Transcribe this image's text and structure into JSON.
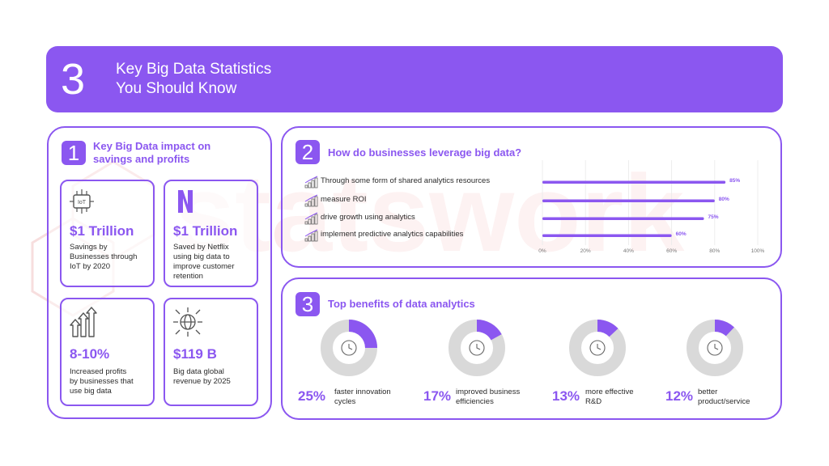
{
  "header": {
    "number": "3",
    "title_line1": "Key Big Data Statistics",
    "title_line2": "You Should Know"
  },
  "watermark": {
    "text": "statswork"
  },
  "section1": {
    "number": "1",
    "title_line1": "Key Big Data impact on",
    "title_line2": "savings and profits",
    "cards": [
      {
        "icon": "iot-chip-icon",
        "value": "$1 Trillion",
        "desc": [
          "Savings by",
          "Businesses through",
          "IoT by 2020"
        ]
      },
      {
        "icon": "netflix-logo-icon",
        "value": "$1 Trillion",
        "desc": [
          "Saved by Netflix",
          "using big data to",
          "improve customer",
          "retention"
        ]
      },
      {
        "icon": "growth-arrows-icon",
        "value": "8-10%",
        "desc": [
          "Increased profits",
          "by businesses that",
          "use big data"
        ]
      },
      {
        "icon": "global-network-icon",
        "value": "$119 B",
        "desc": [
          "Big data global",
          "revenue by 2025"
        ]
      }
    ]
  },
  "section2": {
    "number": "2",
    "title": "How do businesses leverage big data?"
  },
  "section3": {
    "number": "3",
    "title": "Top benefits of data analytics"
  },
  "colors": {
    "accent": "#8b57f0",
    "ring": "#d9d9d9"
  },
  "chart_data": [
    {
      "type": "bar",
      "orientation": "horizontal",
      "title": "How do businesses leverage big data?",
      "categories": [
        "Through some form of shared analytics resources",
        "measure ROI",
        "drive growth using analytics",
        "implement predictive analytics capabilities"
      ],
      "values": [
        85,
        80,
        75,
        60
      ],
      "value_labels": [
        "85%",
        "80%",
        "75%",
        "60%"
      ],
      "xlim": [
        0,
        100
      ],
      "x_ticks": [
        "0%",
        "20%",
        "40%",
        "60%",
        "80%",
        "100%"
      ],
      "grid": true
    },
    {
      "type": "pie",
      "title": "Top benefits of data analytics",
      "slices": [
        {
          "label_pct": "25%",
          "value": 25,
          "desc": [
            "faster innovation",
            "cycles"
          ],
          "icon": "clock-gear-icon"
        },
        {
          "label_pct": "17%",
          "value": 17,
          "desc": [
            "improved business",
            "efficiencies"
          ],
          "icon": "gears-icon"
        },
        {
          "label_pct": "13%",
          "value": 13,
          "desc": [
            "more effective",
            "R&D"
          ],
          "icon": "lightbulb-icon"
        },
        {
          "label_pct": "12%",
          "value": 12,
          "desc": [
            "better",
            "product/service"
          ],
          "icon": "rocket-icon"
        }
      ]
    }
  ]
}
